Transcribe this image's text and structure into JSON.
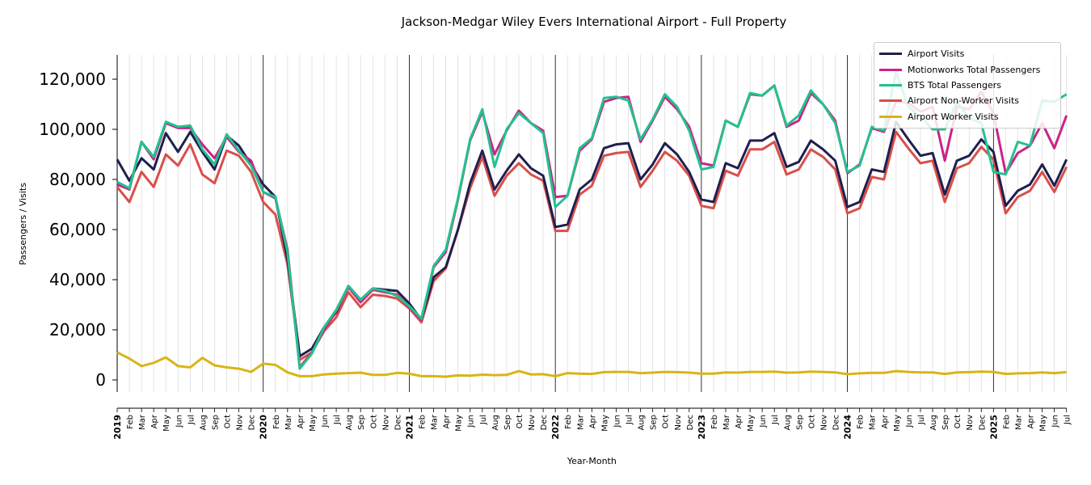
{
  "chart_data": {
    "type": "line",
    "title": "Jackson-Medgar Wiley Evers International Airport - Full Property",
    "xlabel": "Year-Month",
    "ylabel": "Passengers / Visits",
    "ylim": [
      -5000,
      130000
    ],
    "yticks": [
      0,
      20000,
      40000,
      60000,
      80000,
      100000,
      120000
    ],
    "ytick_labels": [
      "0",
      "20,000",
      "40,000",
      "60,000",
      "80,000",
      "100,000",
      "120,000"
    ],
    "years": [
      "2019",
      "2020",
      "2021",
      "2022",
      "2023",
      "2024",
      "2025"
    ],
    "months": [
      "Feb",
      "Mar",
      "Apr",
      "May",
      "Jun",
      "Jul",
      "Aug",
      "Sep",
      "Oct",
      "Nov",
      "Dec"
    ],
    "x": [
      "2019-01",
      "2019-02",
      "2019-03",
      "2019-04",
      "2019-05",
      "2019-06",
      "2019-07",
      "2019-08",
      "2019-09",
      "2019-10",
      "2019-11",
      "2019-12",
      "2020-01",
      "2020-02",
      "2020-03",
      "2020-04",
      "2020-05",
      "2020-06",
      "2020-07",
      "2020-08",
      "2020-09",
      "2020-10",
      "2020-11",
      "2020-12",
      "2021-01",
      "2021-02",
      "2021-03",
      "2021-04",
      "2021-05",
      "2021-06",
      "2021-07",
      "2021-08",
      "2021-09",
      "2021-10",
      "2021-11",
      "2021-12",
      "2022-01",
      "2022-02",
      "2022-03",
      "2022-04",
      "2022-05",
      "2022-06",
      "2022-07",
      "2022-08",
      "2022-09",
      "2022-10",
      "2022-11",
      "2022-12",
      "2023-01",
      "2023-02",
      "2023-03",
      "2023-04",
      "2023-05",
      "2023-06",
      "2023-07",
      "2023-08",
      "2023-09",
      "2023-10",
      "2023-11",
      "2023-12",
      "2024-01",
      "2024-02",
      "2024-03",
      "2024-04",
      "2024-05",
      "2024-06",
      "2024-07",
      "2024-08",
      "2024-09",
      "2024-10",
      "2024-11",
      "2024-12",
      "2025-01",
      "2025-02",
      "2025-03",
      "2025-04",
      "2025-05",
      "2025-06",
      "2025-07"
    ],
    "legend_position": "top-right",
    "grid": "vertical monthly lines; yearly separators",
    "series": [
      {
        "name": "Airport Visits",
        "color": "#1f1f4f",
        "values": [
          88000,
          79500,
          88500,
          84000,
          98500,
          91000,
          99000,
          91000,
          84000,
          97500,
          93500,
          86000,
          78000,
          73000,
          48000,
          9500,
          12500,
          21000,
          27000,
          37500,
          32000,
          36500,
          36000,
          35500,
          30500,
          24000,
          41000,
          45000,
          60000,
          78500,
          91500,
          76000,
          83500,
          90000,
          84500,
          81500,
          61000,
          62000,
          76000,
          80000,
          92500,
          94000,
          94500,
          80000,
          86000,
          94500,
          90000,
          83000,
          72000,
          71000,
          86500,
          84500,
          95500,
          95500,
          98500,
          85000,
          87000,
          95500,
          92000,
          87500,
          69000,
          71000,
          84000,
          83000,
          103000,
          96000,
          89500,
          90500,
          74000,
          87500,
          89500,
          96000,
          91000,
          69500,
          75500,
          78000,
          86000,
          77500,
          88000
        ]
      },
      {
        "name": "Motionworks Total Passengers",
        "color": "#cc2288",
        "values": [
          78000,
          76000,
          95000,
          88000,
          102500,
          100500,
          100500,
          94000,
          88500,
          97000,
          91000,
          87500,
          75000,
          72500,
          52000,
          5000,
          11000,
          20000,
          27500,
          37000,
          31000,
          36000,
          35000,
          34000,
          29000,
          24000,
          45000,
          51000,
          72000,
          95500,
          107000,
          90000,
          99500,
          107500,
          102500,
          99500,
          73000,
          73500,
          91500,
          96000,
          111000,
          112500,
          113000,
          95000,
          103500,
          113000,
          108000,
          101000,
          86500,
          85500,
          103500,
          101000,
          114000,
          113500,
          117500,
          101000,
          103500,
          114500,
          110000,
          103500,
          82500,
          86000,
          100500,
          99000,
          111000,
          110500,
          107000,
          109000,
          87500,
          109000,
          108000,
          115000,
          106500,
          82500,
          90500,
          93500,
          102500,
          92500,
          105500
        ]
      },
      {
        "name": "BTS Total Passengers",
        "color": "#22c28e",
        "values": [
          79000,
          76500,
          95000,
          89000,
          103000,
          101000,
          101500,
          92000,
          86000,
          98000,
          91500,
          85500,
          75000,
          73000,
          51000,
          4500,
          10500,
          21000,
          28000,
          37500,
          32000,
          36500,
          35500,
          33500,
          29500,
          24500,
          45500,
          52000,
          72500,
          96000,
          108000,
          85000,
          100000,
          106500,
          102500,
          98500,
          69000,
          73500,
          92500,
          96500,
          112500,
          113000,
          111500,
          96000,
          104000,
          114000,
          109000,
          99500,
          84000,
          85000,
          103500,
          101000,
          114500,
          113500,
          117500,
          101500,
          105500,
          115500,
          110000,
          102500,
          83000,
          85500,
          101000,
          99500,
          123000,
          109000,
          105000,
          100000,
          100000,
          111000,
          104500,
          102500,
          83000,
          82000,
          95000,
          93500,
          111500,
          111000,
          114000
        ]
      },
      {
        "name": "Airport Non-Worker Visits",
        "color": "#d94f4a",
        "values": [
          77000,
          71000,
          83000,
          77000,
          90000,
          85500,
          94000,
          82000,
          78500,
          91500,
          89500,
          83000,
          71000,
          66000,
          46000,
          8000,
          11000,
          19500,
          25000,
          35000,
          29000,
          34000,
          33500,
          32500,
          28500,
          23000,
          39500,
          44500,
          60000,
          76500,
          89000,
          73500,
          81500,
          86500,
          82000,
          79500,
          59500,
          59500,
          74000,
          77500,
          89500,
          90500,
          91000,
          77000,
          83500,
          91000,
          87500,
          81500,
          69500,
          68500,
          83500,
          81500,
          92000,
          92000,
          95000,
          82000,
          84000,
          92000,
          89000,
          84000,
          66500,
          68500,
          81000,
          80000,
          99000,
          92500,
          86500,
          87500,
          71000,
          84500,
          86500,
          93000,
          88000,
          66500,
          73000,
          75500,
          83000,
          75000,
          85000
        ]
      },
      {
        "name": "Airport Worker Visits",
        "color": "#d9b417",
        "values": [
          11000,
          8500,
          5500,
          6800,
          9000,
          5500,
          5000,
          8800,
          5800,
          5000,
          4500,
          3200,
          6500,
          6000,
          3000,
          1500,
          1500,
          2200,
          2500,
          2700,
          2900,
          2000,
          2000,
          2800,
          2500,
          1500,
          1500,
          1300,
          1800,
          1700,
          2100,
          1900,
          2000,
          3500,
          2200,
          2300,
          1500,
          2700,
          2500,
          2400,
          3100,
          3200,
          3200,
          2700,
          2900,
          3200,
          3100,
          2900,
          2500,
          2500,
          3000,
          2900,
          3200,
          3200,
          3300,
          2900,
          3000,
          3300,
          3200,
          3000,
          2300,
          2600,
          2800,
          2800,
          3500,
          3200,
          3000,
          3000,
          2400,
          3000,
          3100,
          3300,
          3200,
          2400,
          2600,
          2700,
          3000,
          2700,
          3100
        ]
      }
    ]
  }
}
